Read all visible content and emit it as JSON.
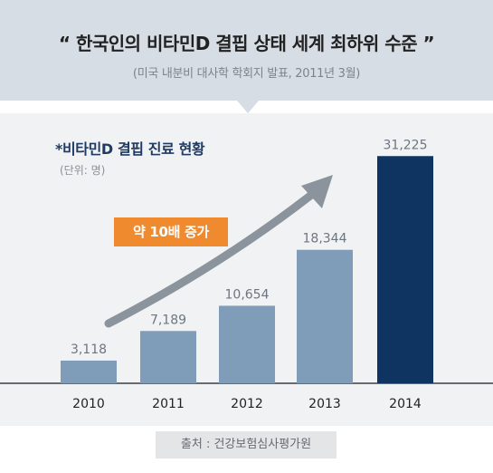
{
  "headline": "“ 한국인의 비타민D 결핍 상태 세계 최하위 수준 ”",
  "source_top": "(미국 내분비 대사학 학회지 발표, 2011년 3월)",
  "chart_title": "*비타민D 결핍 진료 현황",
  "unit_label": "(단위: 명)",
  "annotation": "약 10배 증가",
  "footer_source": "출처 : 건강보험심사평가원",
  "colors": {
    "bar": "#7f9cb8",
    "highlight_bar": "#0f3461",
    "arrow": "#8b949c",
    "annotation_bg": "#f08a2e"
  },
  "chart_data": {
    "type": "bar",
    "title": "*비타민D 결핍 진료 현황",
    "categories": [
      "2010",
      "2011",
      "2012",
      "2013",
      "2014"
    ],
    "values": [
      3118,
      7189,
      10654,
      18344,
      31225
    ],
    "value_labels": [
      "3,118",
      "7,189",
      "10,654",
      "18,344",
      "31,225"
    ],
    "highlight_index": 4,
    "ylim": [
      0,
      33000
    ],
    "grid": false
  }
}
